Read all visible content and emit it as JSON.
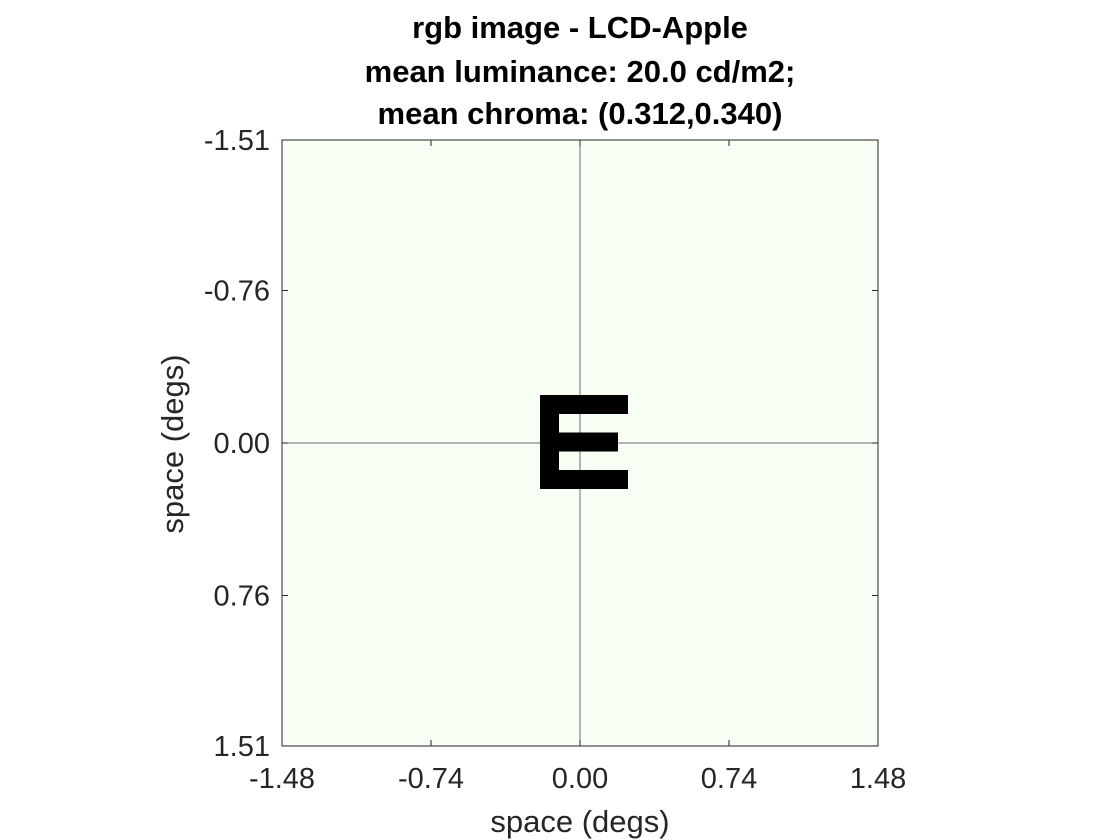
{
  "chart_data": {
    "type": "image",
    "title": [
      "rgb image - LCD-Apple",
      "mean luminance: 20.0 cd/m2;",
      "mean chroma: (0.312,0.340)"
    ],
    "xlabel": "space (degs)",
    "ylabel": "space (degs)",
    "xlim": [
      -1.48,
      1.48
    ],
    "ylim": [
      -1.51,
      1.51
    ],
    "y_direction": "reversed",
    "xticks": [
      -1.48,
      -0.74,
      0.0,
      0.74,
      1.48
    ],
    "xtick_labels": [
      "-1.48",
      "-0.74",
      "0.00",
      "0.74",
      "1.48"
    ],
    "yticks": [
      -1.51,
      -0.76,
      0.0,
      0.76,
      1.51
    ],
    "ytick_labels": [
      "-1.51",
      "-0.76",
      "0.00",
      "0.76",
      "1.51"
    ],
    "background_color": "#f7fff5",
    "crosshair": {
      "x": 0.0,
      "y": 0.0,
      "color": "#6e6e6e"
    },
    "stimulus": {
      "letter": "E",
      "center": [
        0.0,
        0.0
      ],
      "color": "#000000"
    }
  }
}
